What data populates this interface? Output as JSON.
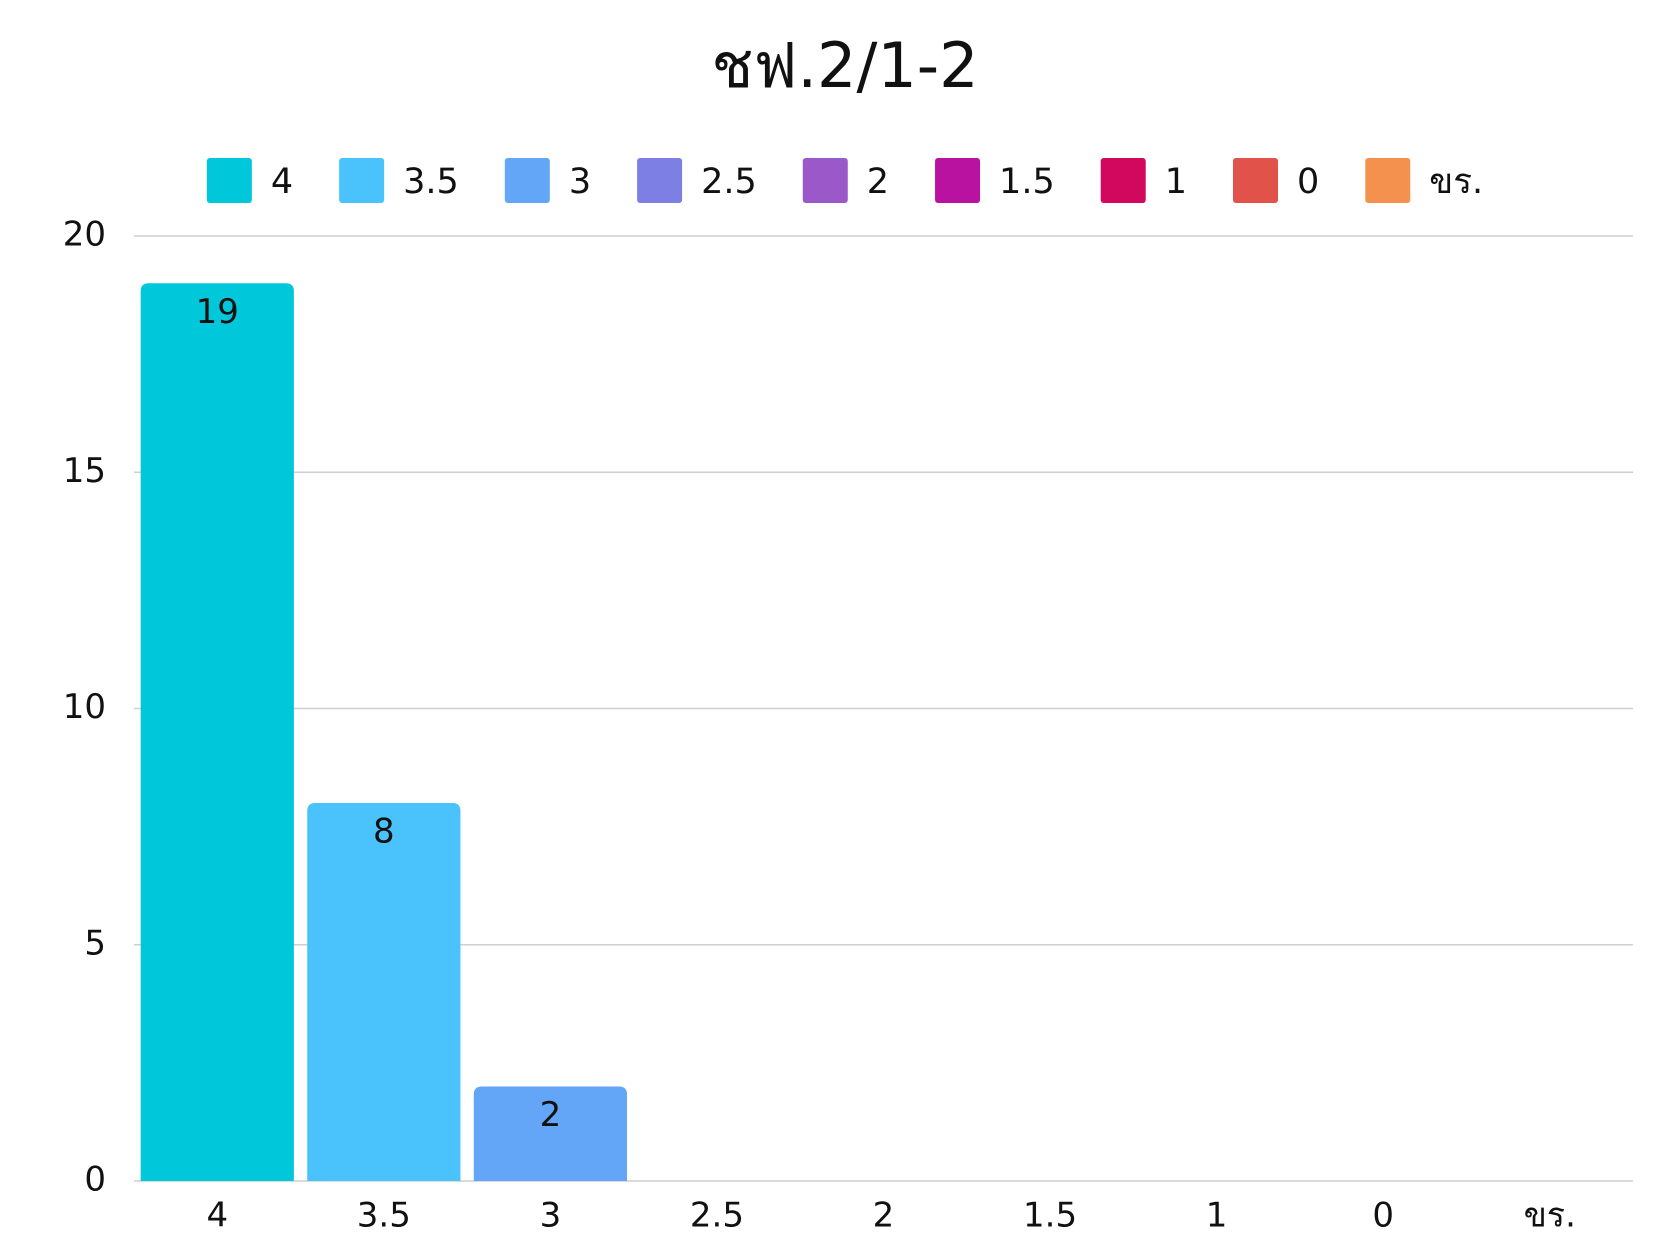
{
  "chart_data": {
    "type": "bar",
    "title": "ชฟ.2/1-2",
    "categories": [
      "4",
      "3.5",
      "3",
      "2.5",
      "2",
      "1.5",
      "1",
      "0",
      "ขร."
    ],
    "values": [
      19,
      8,
      2,
      0,
      0,
      0,
      0,
      0,
      0
    ],
    "colors": [
      "#00c8da",
      "#4ac3fc",
      "#63a6f8",
      "#7d7fe5",
      "#9a58c9",
      "#b912a0",
      "#d1085d",
      "#e0524a",
      "#f5914f"
    ],
    "ylim": [
      0,
      20
    ],
    "yticks": [
      0,
      5,
      10,
      15,
      20
    ],
    "grid": true,
    "legend": "top"
  }
}
